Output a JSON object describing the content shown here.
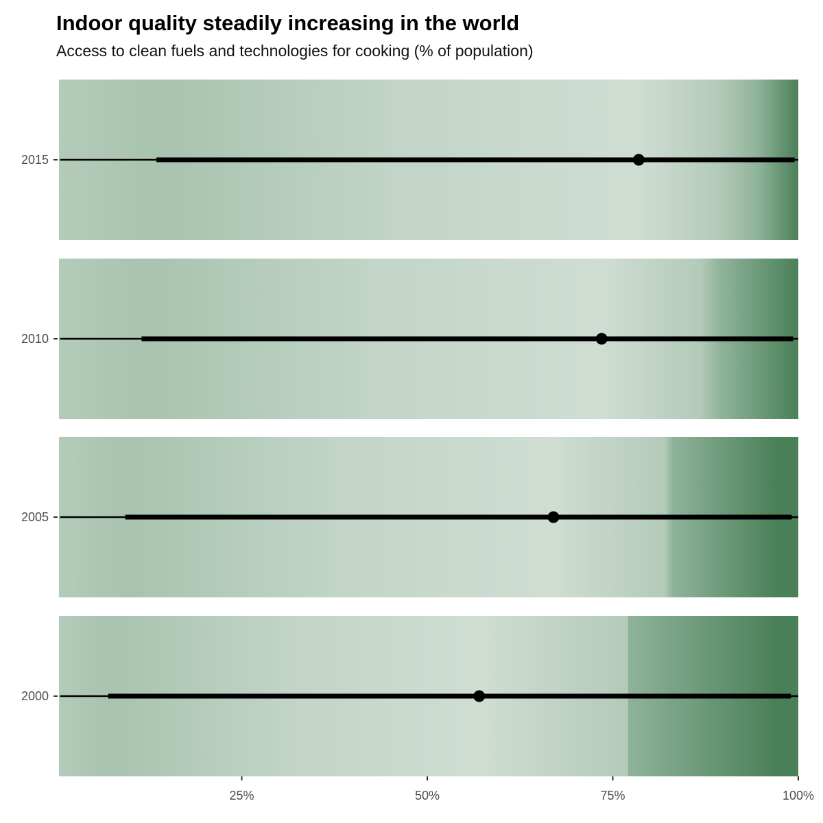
{
  "title": "Indoor quality steadily increasing in the world",
  "subtitle": "Access to clean fuels and technologies for cooking (% of population)",
  "colors": {
    "light": "#cfddd3",
    "dark": "#4a8058",
    "mark": "#000000"
  },
  "chart_data": {
    "type": "interval",
    "title": "Indoor quality steadily increasing in the world",
    "subtitle": "Access to clean fuels and technologies for cooking (% of population)",
    "xlabel": "",
    "ylabel": "",
    "x_ticks": [
      {
        "value": 25,
        "label": "25%"
      },
      {
        "value": 50,
        "label": "50%"
      },
      {
        "value": 75,
        "label": "75%"
      },
      {
        "value": 100,
        "label": "100%"
      }
    ],
    "rows": [
      {
        "year": "2015",
        "low": 0.5,
        "inner_low": 13.5,
        "point": 78.5,
        "inner_high": 99.5,
        "high": 100,
        "density_peak": 100
      },
      {
        "year": "2010",
        "low": 0.5,
        "inner_low": 11.5,
        "point": 73.5,
        "inner_high": 99.3,
        "high": 100,
        "density_peak": 100
      },
      {
        "year": "2005",
        "low": 0.5,
        "inner_low": 9.3,
        "point": 67.0,
        "inner_high": 99.1,
        "high": 100,
        "density_peak": 97
      },
      {
        "year": "2000",
        "low": 0.5,
        "inner_low": 7.0,
        "point": 57.0,
        "inner_high": 99.0,
        "high": 100,
        "density_peak": 97
      }
    ],
    "grid": false,
    "legend": "none"
  }
}
